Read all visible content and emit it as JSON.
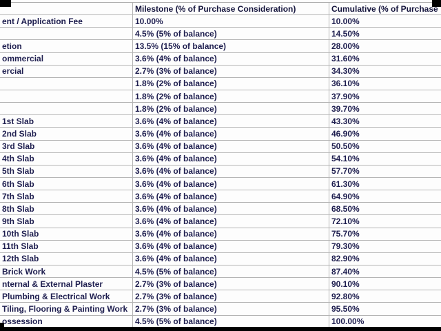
{
  "colors": {
    "text": "#1e1e4f",
    "grid": "#b4b4b4",
    "background": "#fdfdfd",
    "border_artifact": "#000000"
  },
  "header": {
    "col1": "",
    "col2": "Milestone (% of Purchase Consideration)",
    "col3": "Cumulative (% of Purchase"
  },
  "rows": [
    {
      "milestone": "ent / Application Fee",
      "pct": "10.00%",
      "cumulative": "10.00%"
    },
    {
      "milestone": "",
      "pct": "4.5% (5% of balance)",
      "cumulative": "14.50%"
    },
    {
      "milestone": "etion",
      "pct": "13.5% (15% of balance)",
      "cumulative": "28.00%"
    },
    {
      "milestone": "ommercial",
      "pct": "3.6% (4% of balance)",
      "cumulative": "31.60%"
    },
    {
      "milestone": "ercial",
      "pct": "2.7% (3% of balance)",
      "cumulative": "34.30%"
    },
    {
      "milestone": "",
      "pct": "1.8% (2% of balance)",
      "cumulative": "36.10%"
    },
    {
      "milestone": "",
      "pct": "1.8% (2% of balance)",
      "cumulative": "37.90%"
    },
    {
      "milestone": "",
      "pct": "1.8% (2% of balance)",
      "cumulative": "39.70%"
    },
    {
      "milestone": "1st Slab",
      "pct": "3.6% (4% of balance)",
      "cumulative": "43.30%"
    },
    {
      "milestone": "2nd Slab",
      "pct": "3.6% (4% of balance)",
      "cumulative": "46.90%"
    },
    {
      "milestone": "3rd Slab",
      "pct": "3.6% (4% of balance)",
      "cumulative": "50.50%"
    },
    {
      "milestone": "4th Slab",
      "pct": "3.6% (4% of balance)",
      "cumulative": "54.10%"
    },
    {
      "milestone": "5th Slab",
      "pct": "3.6% (4% of balance)",
      "cumulative": "57.70%"
    },
    {
      "milestone": "6th Slab",
      "pct": "3.6% (4% of balance)",
      "cumulative": "61.30%"
    },
    {
      "milestone": "7th Slab",
      "pct": "3.6% (4% of balance)",
      "cumulative": "64.90%"
    },
    {
      "milestone": "8th Slab",
      "pct": "3.6% (4% of balance)",
      "cumulative": "68.50%"
    },
    {
      "milestone": "9th Slab",
      "pct": "3.6% (4% of balance)",
      "cumulative": "72.10%"
    },
    {
      "milestone": "10th Slab",
      "pct": "3.6% (4% of balance)",
      "cumulative": "75.70%"
    },
    {
      "milestone": "11th Slab",
      "pct": "3.6% (4% of balance)",
      "cumulative": "79.30%"
    },
    {
      "milestone": "12th Slab",
      "pct": "3.6% (4% of balance)",
      "cumulative": "82.90%"
    },
    {
      "milestone": "Brick Work",
      "pct": "4.5% (5% of balance)",
      "cumulative": "87.40%"
    },
    {
      "milestone": "nternal & External Plaster",
      "pct": "2.7% (3% of balance)",
      "cumulative": "90.10%"
    },
    {
      "milestone": "Plumbing & Electrical Work",
      "pct": "2.7% (3% of balance)",
      "cumulative": "92.80%"
    },
    {
      "milestone": "Tiling, Flooring & Painting Work",
      "pct": "2.7% (3% of balance)",
      "cumulative": "95.50%"
    },
    {
      "milestone": "ossession",
      "pct": "4.5% (5% of balance)",
      "cumulative": "100.00%"
    }
  ]
}
